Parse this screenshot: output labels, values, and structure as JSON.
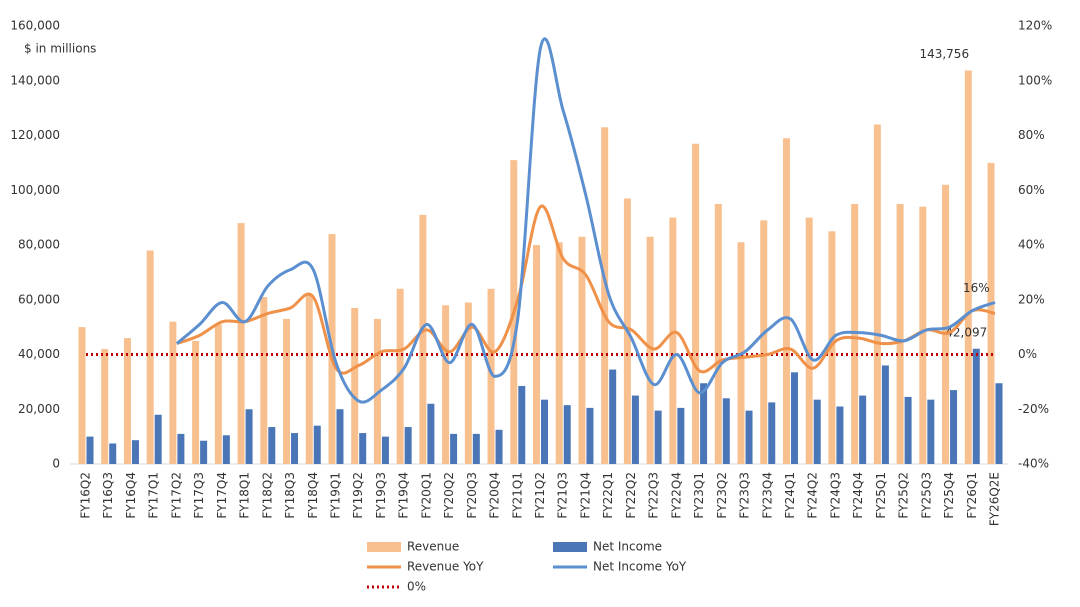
{
  "chart_data": {
    "type": "bar_line",
    "y_label": "$ in millions",
    "categories": [
      "FY16Q2",
      "FY16Q3",
      "FY16Q4",
      "FY17Q1",
      "FY17Q2",
      "FY17Q3",
      "FY17Q4",
      "FY18Q1",
      "FY18Q2",
      "FY18Q3",
      "FY18Q4",
      "FY19Q1",
      "FY19Q2",
      "FY19Q3",
      "FY19Q4",
      "FY20Q1",
      "FY20Q2",
      "FY20Q3",
      "FY20Q4",
      "FY21Q1",
      "FY21Q2",
      "FY21Q3",
      "FY21Q4",
      "FY22Q1",
      "FY22Q2",
      "FY22Q3",
      "FY22Q4",
      "FY23Q1",
      "FY23Q2",
      "FY23Q3",
      "FY23Q4",
      "FY24Q1",
      "FY24Q2",
      "FY24Q3",
      "FY24Q4",
      "FY25Q1",
      "FY25Q2",
      "FY25Q3",
      "FY25Q4",
      "FY26Q1",
      "FY26Q2E"
    ],
    "series": [
      {
        "name": "Revenue",
        "kind": "bar",
        "color": "#f8c08f",
        "values": [
          50000,
          42000,
          46000,
          78000,
          52000,
          45000,
          51000,
          88000,
          61000,
          53000,
          62000,
          84000,
          57000,
          53000,
          64000,
          91000,
          58000,
          59000,
          64000,
          111000,
          80000,
          81000,
          83000,
          123000,
          97000,
          83000,
          90000,
          117000,
          95000,
          81000,
          89000,
          119000,
          90000,
          85000,
          95000,
          124000,
          95000,
          94000,
          102000,
          143756,
          110000
        ],
        "value_labels": [
          null,
          null,
          null,
          null,
          null,
          null,
          null,
          null,
          null,
          null,
          null,
          null,
          null,
          null,
          null,
          null,
          null,
          null,
          null,
          null,
          null,
          null,
          null,
          null,
          null,
          null,
          null,
          null,
          null,
          null,
          null,
          null,
          null,
          null,
          null,
          null,
          null,
          null,
          null,
          "143,756",
          null
        ]
      },
      {
        "name": "Net Income",
        "kind": "bar",
        "color": "#4a76b8",
        "values": [
          10000,
          7500,
          8700,
          18000,
          11000,
          8500,
          10500,
          20000,
          13500,
          11300,
          14000,
          20000,
          11300,
          10000,
          13500,
          22000,
          11000,
          11000,
          12500,
          28500,
          23500,
          21500,
          20500,
          34500,
          25000,
          19500,
          20500,
          29500,
          24000,
          19500,
          22500,
          33500,
          23500,
          21000,
          25000,
          36000,
          24500,
          23500,
          27000,
          42097,
          29500
        ],
        "value_labels": [
          null,
          null,
          null,
          null,
          null,
          null,
          null,
          null,
          null,
          null,
          null,
          null,
          null,
          null,
          null,
          null,
          null,
          null,
          null,
          null,
          null,
          null,
          null,
          null,
          null,
          null,
          null,
          null,
          null,
          null,
          null,
          null,
          null,
          null,
          null,
          null,
          null,
          null,
          null,
          "42,097",
          null
        ]
      },
      {
        "name": "Revenue YoY",
        "kind": "line",
        "axis": "y2",
        "color": "#f0914a",
        "values": [
          null,
          null,
          null,
          null,
          4,
          7,
          12,
          12,
          15,
          17,
          21,
          -5,
          -4,
          1,
          2,
          9,
          1,
          10,
          1,
          20,
          54,
          35,
          29,
          12,
          9,
          2,
          8,
          -6,
          -2,
          -1,
          0,
          2,
          -5,
          5,
          6,
          4,
          5,
          9,
          8,
          16,
          15
        ],
        "value_labels": [
          null,
          null,
          null,
          null,
          null,
          null,
          null,
          null,
          null,
          null,
          null,
          null,
          null,
          null,
          null,
          null,
          null,
          null,
          null,
          null,
          null,
          null,
          null,
          null,
          null,
          null,
          null,
          null,
          null,
          null,
          null,
          null,
          null,
          null,
          null,
          null,
          null,
          null,
          null,
          "16%",
          null
        ]
      },
      {
        "name": "Net Income YoY",
        "kind": "line",
        "axis": "y2",
        "color": "#5b8fd0",
        "values": [
          null,
          null,
          null,
          null,
          4,
          11,
          19,
          12,
          25,
          31,
          31,
          -3,
          -17,
          -13,
          -5,
          11,
          -3,
          11,
          -8,
          13,
          112,
          89,
          58,
          22,
          6,
          -11,
          0,
          -14,
          -3,
          1,
          9,
          13,
          -2,
          7,
          8,
          7,
          5,
          9,
          10,
          16,
          19
        ]
      },
      {
        "name": "0%",
        "kind": "dotted",
        "axis": "y2",
        "color": "#c00000",
        "values": [
          0,
          0,
          0,
          0,
          0,
          0,
          0,
          0,
          0,
          0,
          0,
          0,
          0,
          0,
          0,
          0,
          0,
          0,
          0,
          0,
          0,
          0,
          0,
          0,
          0,
          0,
          0,
          0,
          0,
          0,
          0,
          0,
          0,
          0,
          0,
          0,
          0,
          0,
          0,
          0,
          0
        ]
      }
    ],
    "ylim": [
      0,
      160000
    ],
    "yticks": [
      0,
      {
        "value": 20000,
        "label": "20,000"
      },
      {
        "value": 40000,
        "label": "40,000"
      },
      {
        "value": 60000,
        "label": "60,000"
      },
      {
        "value": 80000,
        "label": "80,000"
      },
      {
        "value": 100000,
        "label": "100,000"
      },
      {
        "value": 120000,
        "label": "120,000"
      },
      {
        "value": 140000,
        "label": "140,000"
      },
      {
        "value": 160000,
        "label": "160,000"
      }
    ],
    "y2lim": [
      -40,
      120
    ],
    "y2ticks": [
      {
        "value": -40,
        "label": "-40%"
      },
      {
        "value": -20,
        "label": "-20%"
      },
      {
        "value": 0,
        "label": "0%"
      },
      {
        "value": 20,
        "label": "20%"
      },
      {
        "value": 40,
        "label": "40%"
      },
      {
        "value": 60,
        "label": "60%"
      },
      {
        "value": 80,
        "label": "80%"
      },
      {
        "value": 100,
        "label": "100%"
      },
      {
        "value": 120,
        "label": "120%"
      }
    ],
    "legend": "bottom"
  }
}
